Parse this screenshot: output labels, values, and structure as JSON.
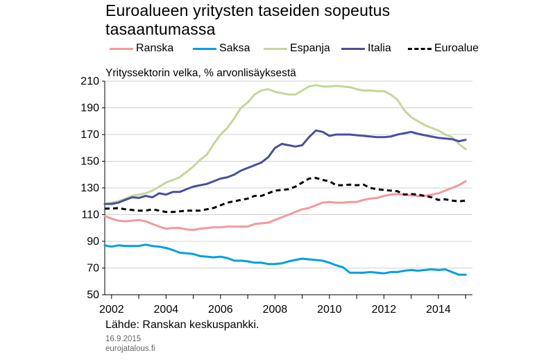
{
  "header": {
    "title_line1": "Euroalueen yritysten taseiden sopeutus",
    "title_line2": "tasaantumassa"
  },
  "subtitle": "Yrityssektorin velka, % arvonlisäyksestä",
  "footer": {
    "source": "Lähde: Ranskan keskuspankki.",
    "date": "16.9.2015",
    "site": "eurojatalous.fi"
  },
  "chart_data": {
    "type": "line",
    "title": "Euroalueen yritysten taseiden sopeutus tasaantumassa",
    "ylabel": "Yrityssektorin velka, % arvonlisäyksestä",
    "xlim": [
      2001.75,
      2015.25
    ],
    "ylim": [
      50,
      210
    ],
    "y_ticks": [
      50,
      70,
      90,
      110,
      130,
      150,
      170,
      190,
      210
    ],
    "x_ticks": [
      2002,
      2004,
      2006,
      2008,
      2010,
      2012,
      2014
    ],
    "grid": "horizontal",
    "legend": "top",
    "x": [
      2001.75,
      2002.0,
      2002.25,
      2002.5,
      2002.75,
      2003.0,
      2003.25,
      2003.5,
      2003.75,
      2004.0,
      2004.25,
      2004.5,
      2004.75,
      2005.0,
      2005.25,
      2005.5,
      2005.75,
      2006.0,
      2006.25,
      2006.5,
      2006.75,
      2007.0,
      2007.25,
      2007.5,
      2007.75,
      2008.0,
      2008.25,
      2008.5,
      2008.75,
      2009.0,
      2009.25,
      2009.5,
      2009.75,
      2010.0,
      2010.25,
      2010.5,
      2010.75,
      2011.0,
      2011.25,
      2011.5,
      2011.75,
      2012.0,
      2012.25,
      2012.5,
      2012.75,
      2013.0,
      2013.25,
      2013.5,
      2013.75,
      2014.0,
      2014.25,
      2014.5,
      2014.75,
      2015.0
    ],
    "series": [
      {
        "name": "Ranska",
        "color": "#f4999a",
        "dash": false,
        "values": [
          109,
          107,
          105.5,
          105,
          105.5,
          106,
          105,
          103,
          101,
          99.5,
          100,
          100,
          99,
          98.5,
          99.5,
          100,
          100.5,
          100.5,
          101,
          101,
          101,
          101,
          103,
          103.5,
          104,
          106,
          108,
          110,
          112,
          114,
          115,
          117,
          119,
          119.5,
          119,
          119,
          119.5,
          119.5,
          121,
          122,
          122.5,
          124,
          125,
          125.5,
          125,
          124.5,
          124,
          124,
          125,
          126,
          128,
          130,
          132,
          135
        ]
      },
      {
        "name": "Saksa",
        "color": "#009fe0",
        "dash": false,
        "values": [
          87,
          86,
          87,
          86.5,
          86.5,
          86.5,
          87.5,
          86.5,
          86,
          85,
          83.5,
          81.5,
          81,
          80.5,
          79,
          78.5,
          78,
          78.5,
          77.5,
          75.5,
          75.5,
          75,
          74,
          74,
          73,
          73,
          73.5,
          75,
          76,
          77,
          76.5,
          76,
          75.5,
          74,
          72,
          70.5,
          66.5,
          66.5,
          66.5,
          67,
          66.5,
          66,
          67,
          67,
          68,
          68.5,
          68,
          68.5,
          69,
          68.5,
          69,
          67,
          65,
          65
        ]
      },
      {
        "name": "Espanja",
        "color": "#c4d79b",
        "dash": false,
        "values": [
          118,
          119,
          120,
          122,
          124,
          125,
          126,
          128,
          131,
          134,
          136,
          138,
          142,
          146,
          151,
          155,
          163,
          170,
          175,
          182,
          190,
          194,
          200,
          203,
          204,
          202,
          201,
          200,
          200,
          203,
          206,
          207,
          206,
          206,
          206.5,
          206,
          205.5,
          204,
          203,
          203,
          202.5,
          202.5,
          200,
          196,
          188,
          183,
          180,
          177,
          175,
          173,
          170,
          168,
          163,
          159
        ]
      },
      {
        "name": "Italia",
        "color": "#4a4f9f",
        "dash": false,
        "values": [
          118,
          118,
          119,
          121,
          123,
          122.5,
          124,
          123,
          126,
          125,
          127,
          127,
          129,
          131,
          132,
          133,
          135,
          137,
          138,
          140,
          143,
          145,
          147,
          149,
          153,
          160,
          163,
          162,
          161,
          162,
          168,
          173,
          172,
          169,
          170,
          170,
          170,
          169.5,
          169,
          168.5,
          168,
          168,
          168.5,
          170,
          171,
          172,
          170.5,
          169.5,
          168.5,
          167.5,
          167,
          166.5,
          165,
          166
        ]
      },
      {
        "name": "Euroalue",
        "color": "#000000",
        "dash": true,
        "values": [
          114.5,
          114.5,
          115,
          114,
          113.5,
          113,
          113,
          114,
          113,
          112,
          112,
          112.5,
          113,
          113,
          113,
          114,
          115,
          117,
          119,
          120,
          121,
          122,
          124,
          124,
          126,
          128,
          128.5,
          129,
          131,
          134,
          137,
          137.5,
          136,
          135,
          132,
          132,
          132.5,
          132,
          132.5,
          130,
          129,
          128.5,
          128,
          127.5,
          125,
          125.5,
          125,
          124,
          123,
          121,
          121.5,
          120.5,
          120,
          120.5
        ]
      }
    ]
  }
}
